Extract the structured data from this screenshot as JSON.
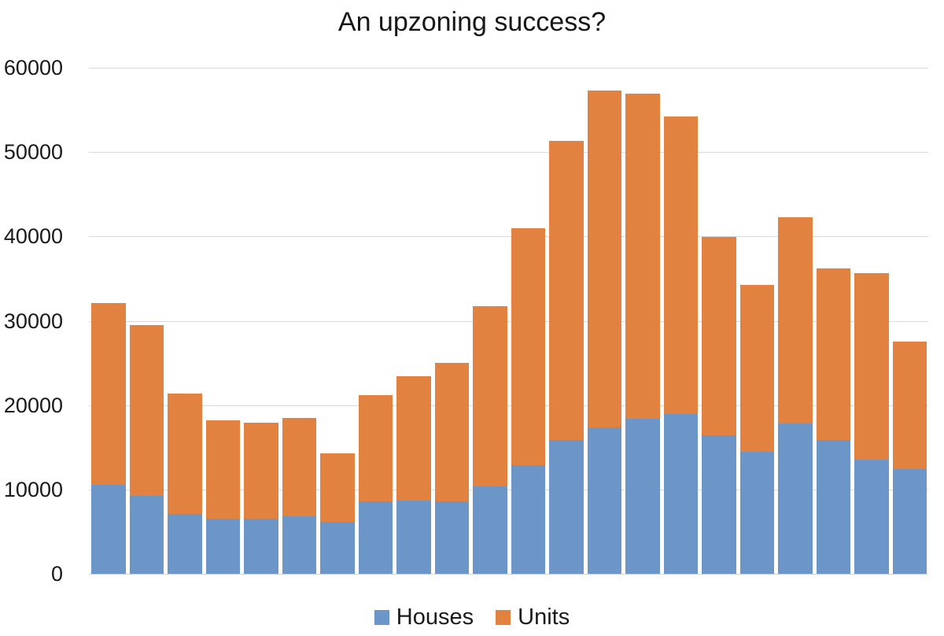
{
  "title": "An upzoning success?",
  "colors": {
    "houses": "#6C96C8",
    "units": "#E28240",
    "gridline": "#d9d9d9",
    "text": "#1a1a1a"
  },
  "legend": {
    "houses_label": "Houses",
    "units_label": "Units"
  },
  "chart_data": {
    "type": "bar",
    "stacked": true,
    "title": "An upzoning success?",
    "xlabel": "",
    "ylabel": "",
    "categories_shown": false,
    "n_bars": 22,
    "ylim": [
      0,
      60000
    ],
    "yticks": [
      0,
      10000,
      20000,
      30000,
      40000,
      50000,
      60000
    ],
    "grid": true,
    "legend_position": "bottom",
    "series": [
      {
        "name": "Houses",
        "color": "#6C96C8",
        "values": [
          10500,
          9200,
          7100,
          6500,
          6500,
          6800,
          6200,
          8600,
          8700,
          8600,
          10400,
          12900,
          15900,
          17400,
          18400,
          18900,
          16400,
          14500,
          17800,
          15900,
          13500,
          12400
        ]
      },
      {
        "name": "Units",
        "color": "#E28240",
        "values": [
          21600,
          20300,
          14300,
          11700,
          11400,
          11700,
          8100,
          12600,
          14700,
          16400,
          21300,
          28100,
          35400,
          39900,
          38500,
          35300,
          23500,
          19700,
          24500,
          20300,
          22100,
          15100
        ]
      }
    ],
    "totals": [
      32100,
      29500,
      21400,
      18200,
      17900,
      18500,
      14300,
      21200,
      23400,
      25000,
      31700,
      41000,
      51300,
      57300,
      56900,
      54200,
      39900,
      34200,
      42300,
      36200,
      35600,
      27500
    ]
  }
}
